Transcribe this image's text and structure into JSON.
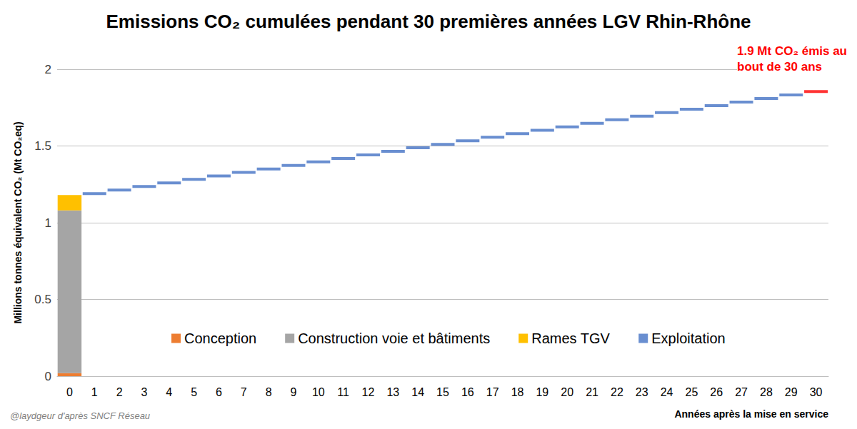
{
  "chart_data": {
    "type": "bar",
    "stacked": true,
    "title": "Emissions CO₂ cumulées pendant 30 premières années LGV Rhin-Rhône",
    "y_label": "Millions tonnes équivalent CO₂ (Mt CO₂eq)",
    "x_label": "Années après la mise en service",
    "source": "@laydgeur d'après SNCF Réseau",
    "annotation": {
      "text": "1.9 Mt CO₂ émis au\nbout de 30 ans",
      "x": 30,
      "color": "#ff0000"
    },
    "categories": [
      0,
      1,
      2,
      3,
      4,
      5,
      6,
      7,
      8,
      9,
      10,
      11,
      12,
      13,
      14,
      15,
      16,
      17,
      18,
      19,
      20,
      21,
      22,
      23,
      24,
      25,
      26,
      27,
      28,
      29,
      30
    ],
    "series": [
      {
        "name": "Conception",
        "color": "#ed7d31",
        "type": "bar",
        "values": [
          0.02,
          null,
          null,
          null,
          null,
          null,
          null,
          null,
          null,
          null,
          null,
          null,
          null,
          null,
          null,
          null,
          null,
          null,
          null,
          null,
          null,
          null,
          null,
          null,
          null,
          null,
          null,
          null,
          null,
          null,
          null
        ]
      },
      {
        "name": "Construction voie et bâtiments",
        "color": "#a5a5a5",
        "type": "bar",
        "values": [
          1.06,
          null,
          null,
          null,
          null,
          null,
          null,
          null,
          null,
          null,
          null,
          null,
          null,
          null,
          null,
          null,
          null,
          null,
          null,
          null,
          null,
          null,
          null,
          null,
          null,
          null,
          null,
          null,
          null,
          null,
          null
        ]
      },
      {
        "name": "Rames TGV",
        "color": "#ffc000",
        "type": "bar",
        "values": [
          0.1,
          null,
          null,
          null,
          null,
          null,
          null,
          null,
          null,
          null,
          null,
          null,
          null,
          null,
          null,
          null,
          null,
          null,
          null,
          null,
          null,
          null,
          null,
          null,
          null,
          null,
          null,
          null,
          null,
          null,
          null
        ]
      },
      {
        "name": "Exploitation",
        "color": "#4472c4",
        "type": "scatter",
        "marker": "dash",
        "values": [
          null,
          1.19,
          1.213,
          1.236,
          1.259,
          1.282,
          1.305,
          1.328,
          1.35,
          1.373,
          1.396,
          1.419,
          1.442,
          1.465,
          1.488,
          1.511,
          1.534,
          1.557,
          1.58,
          1.602,
          1.625,
          1.648,
          1.671,
          1.694,
          1.717,
          1.74,
          1.763,
          1.786,
          1.809,
          1.832,
          1.855
        ]
      }
    ],
    "ylim": [
      0,
      2
    ],
    "yticks": [
      0,
      0.5,
      1,
      1.5,
      2
    ],
    "grid": true,
    "legend": "bottom"
  }
}
